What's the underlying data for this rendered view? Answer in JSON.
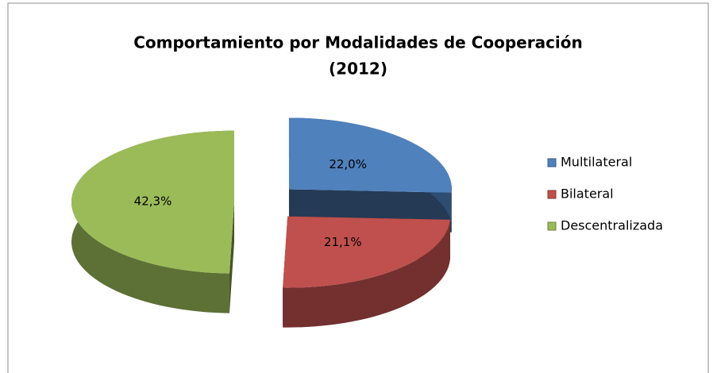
{
  "chart_data": {
    "type": "pie3d",
    "title": [
      "Comportamiento por Modalidades de Cooperación",
      "(2012)"
    ],
    "categories": [
      "Multilateral",
      "Bilateral",
      "Descentralizada"
    ],
    "values": [
      22.0,
      21.1,
      42.3
    ],
    "value_labels": [
      "22,0%",
      "21,1%",
      "42,3%"
    ],
    "colors": [
      "#4f81bd",
      "#c0504d",
      "#9bbb59"
    ],
    "legend": "right"
  }
}
